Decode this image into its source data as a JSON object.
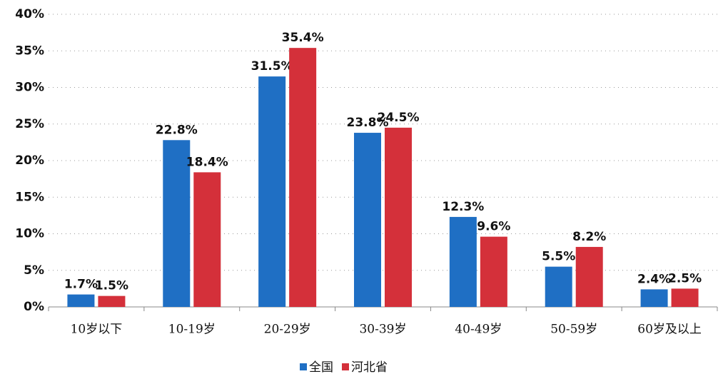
{
  "chart_data": {
    "type": "bar",
    "categories": [
      "10岁以下",
      "10-19岁",
      "20-29岁",
      "30-39岁",
      "40-49岁",
      "50-59岁",
      "60岁及以上"
    ],
    "series": [
      {
        "name": "全国",
        "color": "#1f6fc4",
        "values": [
          1.7,
          22.8,
          31.5,
          23.8,
          12.3,
          5.5,
          2.4
        ],
        "value_labels": [
          "1.7%",
          "22.8%",
          "31.5%",
          "23.8%",
          "12.3%",
          "5.5%",
          "2.4%"
        ]
      },
      {
        "name": "河北省",
        "color": "#d4303a",
        "values": [
          1.5,
          18.4,
          35.4,
          24.5,
          9.6,
          8.2,
          2.5
        ],
        "value_labels": [
          "1.5%",
          "18.4%",
          "35.4%",
          "24.5%",
          "9.6%",
          "8.2%",
          "2.5%"
        ]
      }
    ],
    "ylim": [
      0,
      40
    ],
    "yticks": [
      {
        "value": 0,
        "label": "0%"
      },
      {
        "value": 5,
        "label": "5%"
      },
      {
        "value": 10,
        "label": "10%"
      },
      {
        "value": 15,
        "label": "15%"
      },
      {
        "value": 20,
        "label": "20%"
      },
      {
        "value": 25,
        "label": "25%"
      },
      {
        "value": 30,
        "label": "30%"
      },
      {
        "value": 35,
        "label": "35%"
      },
      {
        "value": 40,
        "label": "40%"
      }
    ],
    "grid": true
  }
}
